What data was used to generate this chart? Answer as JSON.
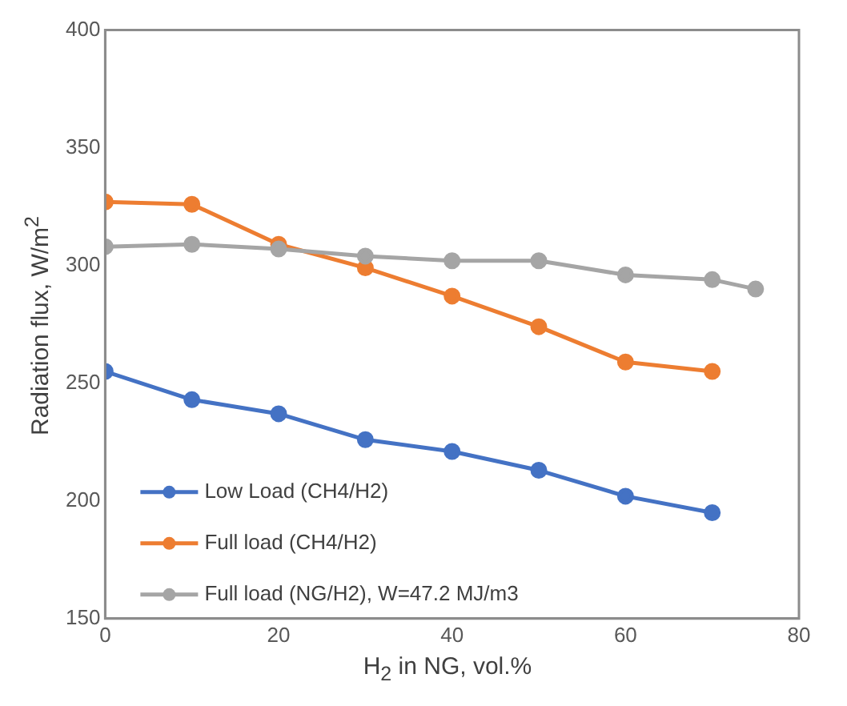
{
  "chart_data": {
    "type": "line",
    "xlabel": "H$_{2}$ in NG, vol.%",
    "ylabel": "Radiation flux, W/m$^{2}$",
    "xlim": [
      0,
      80
    ],
    "xticks": [
      0,
      20,
      40,
      60,
      80
    ],
    "ylim": [
      150,
      400
    ],
    "yticks": [
      150,
      200,
      250,
      300,
      350,
      400
    ],
    "grid": false,
    "legend": "bottom left",
    "marker": "circle",
    "line_style": "solid",
    "series": [
      {
        "name": "Low Load (CH4/H2)",
        "color": "#4472c4",
        "x": [
          0,
          10,
          20,
          30,
          40,
          50,
          60,
          70
        ],
        "values": [
          255,
          243,
          237,
          226,
          221,
          213,
          202,
          195
        ]
      },
      {
        "name": "Full load (CH4/H2)",
        "color": "#ed7d31",
        "x": [
          0,
          10,
          20,
          30,
          40,
          50,
          60,
          70
        ],
        "values": [
          327,
          326,
          309,
          299,
          287,
          274,
          259,
          255
        ]
      },
      {
        "name": "Full load (NG/H2), W=47.2 MJ/m3",
        "color": "#a5a5a5",
        "x": [
          0,
          10,
          20,
          30,
          40,
          50,
          60,
          70,
          75
        ],
        "values": [
          308,
          309,
          307,
          304,
          302,
          302,
          296,
          294,
          290
        ]
      }
    ]
  }
}
